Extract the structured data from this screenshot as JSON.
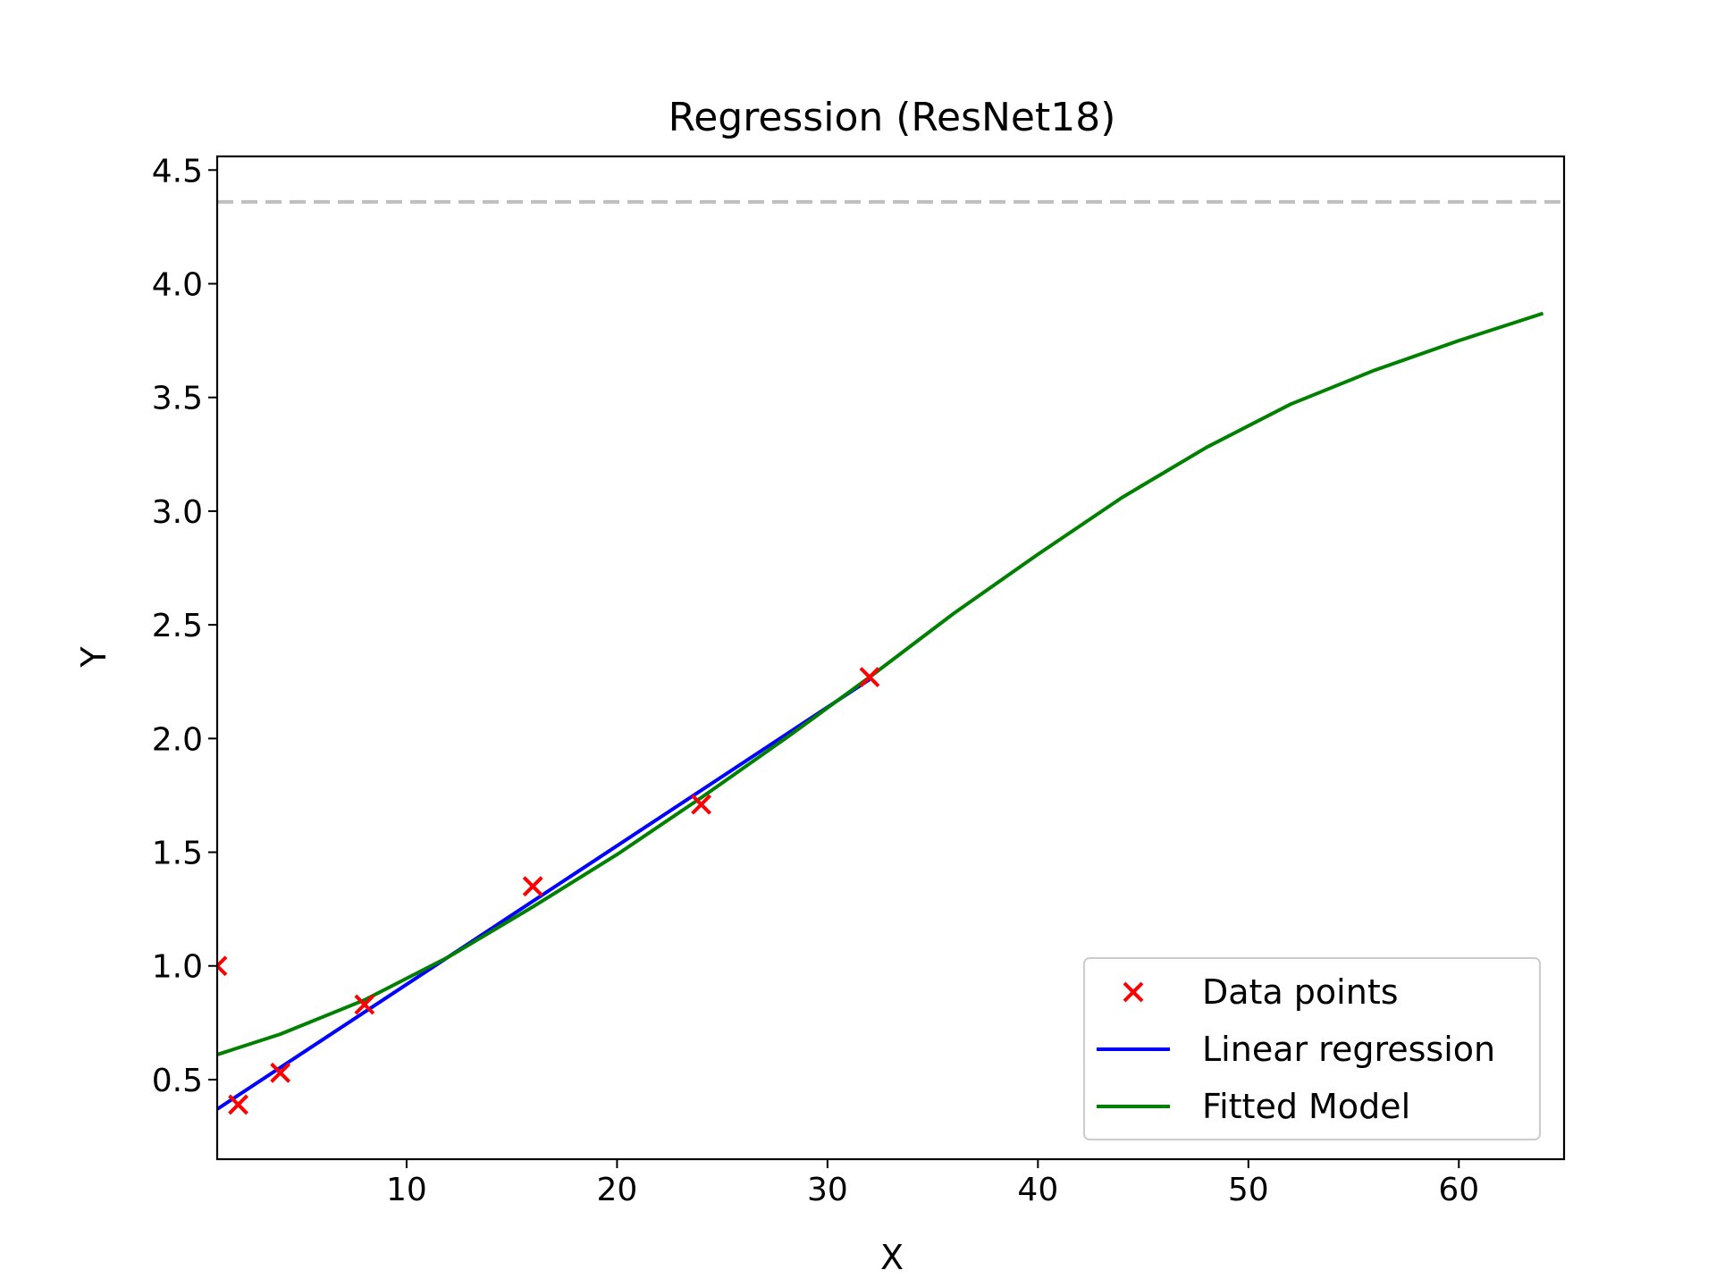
{
  "chart_data": {
    "type": "scatter",
    "title": "Regression (ResNet18)",
    "xlabel": "X",
    "ylabel": "Y",
    "xlim": [
      1,
      65
    ],
    "ylim": [
      0.15,
      4.56
    ],
    "xticks": [
      10,
      20,
      30,
      40,
      50,
      60
    ],
    "yticks": [
      0.5,
      1.0,
      1.5,
      2.0,
      2.5,
      3.0,
      3.5,
      4.0,
      4.5
    ],
    "xtick_labels": [
      "10",
      "20",
      "30",
      "40",
      "50",
      "60"
    ],
    "ytick_labels": [
      "0.5",
      "1.0",
      "1.5",
      "2.0",
      "2.5",
      "3.0",
      "3.5",
      "4.0",
      "4.5"
    ],
    "grid": false,
    "legend_position": "lower-right",
    "asymptote": {
      "y": 4.36,
      "color": "#bfbfbf",
      "style": "dashed"
    },
    "series": [
      {
        "name": "Data points",
        "kind": "scatter",
        "marker": "x",
        "color": "#ff0000",
        "x": [
          1,
          2,
          4,
          8,
          16,
          24,
          32
        ],
        "y": [
          1.0,
          0.39,
          0.53,
          0.83,
          1.35,
          1.71,
          2.27
        ]
      },
      {
        "name": "Linear regression",
        "kind": "line",
        "color": "#0000ff",
        "x": [
          1,
          32
        ],
        "y": [
          0.37,
          2.26
        ]
      },
      {
        "name": "Fitted Model",
        "kind": "line",
        "color": "#008000",
        "x": [
          1,
          4,
          8,
          12,
          16,
          20,
          24,
          28,
          32,
          36,
          40,
          44,
          48,
          52,
          56,
          60,
          64
        ],
        "y": [
          0.61,
          0.7,
          0.85,
          1.04,
          1.26,
          1.49,
          1.74,
          2.0,
          2.27,
          2.55,
          2.81,
          3.06,
          3.28,
          3.47,
          3.62,
          3.75,
          3.87
        ]
      }
    ]
  }
}
